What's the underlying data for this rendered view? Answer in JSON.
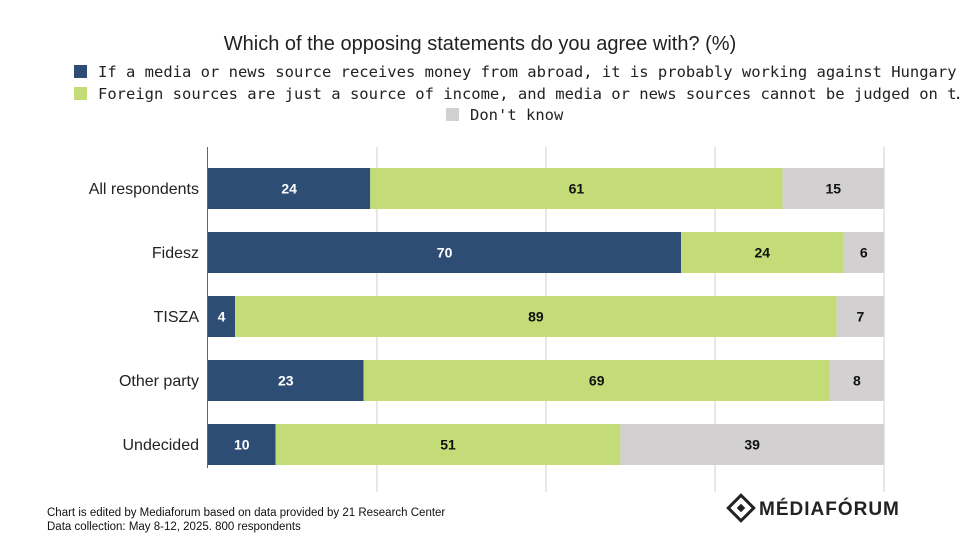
{
  "chart_data": {
    "type": "bar",
    "orientation": "horizontal",
    "stacked": true,
    "title": "Which of the opposing statements do you agree with? (%)",
    "categories": [
      "All respondents",
      "Fidesz",
      "TISZA",
      "Other party",
      "Undecided"
    ],
    "series": [
      {
        "name": "If a media or news source receives money from abroad, it is probably working against Hungary",
        "color": "#2e4d75",
        "label_color": "#ffffff",
        "values": [
          24,
          70,
          4,
          23,
          10
        ]
      },
      {
        "name": "Foreign sources are just a source of income, and media or news sources cannot be judged on t…",
        "color": "#c4dc78",
        "label_color": "#111111",
        "values": [
          61,
          24,
          89,
          69,
          51
        ]
      },
      {
        "name": "Don't know",
        "color": "#d2d0d0",
        "label_color": "#111111",
        "values": [
          15,
          6,
          7,
          8,
          39
        ]
      }
    ],
    "xlim": [
      0,
      100
    ],
    "grid": true,
    "legend_position": "top"
  },
  "footer": {
    "source_line1": "Chart is edited by Mediaforum based on data provided by 21 Research Center",
    "source_line2": "Data collection: May 8-12, 2025. 800 respondents"
  },
  "brand": {
    "name": "MÉDIAFÓRUM",
    "logo_icon": "mediaforum-logo-icon"
  }
}
